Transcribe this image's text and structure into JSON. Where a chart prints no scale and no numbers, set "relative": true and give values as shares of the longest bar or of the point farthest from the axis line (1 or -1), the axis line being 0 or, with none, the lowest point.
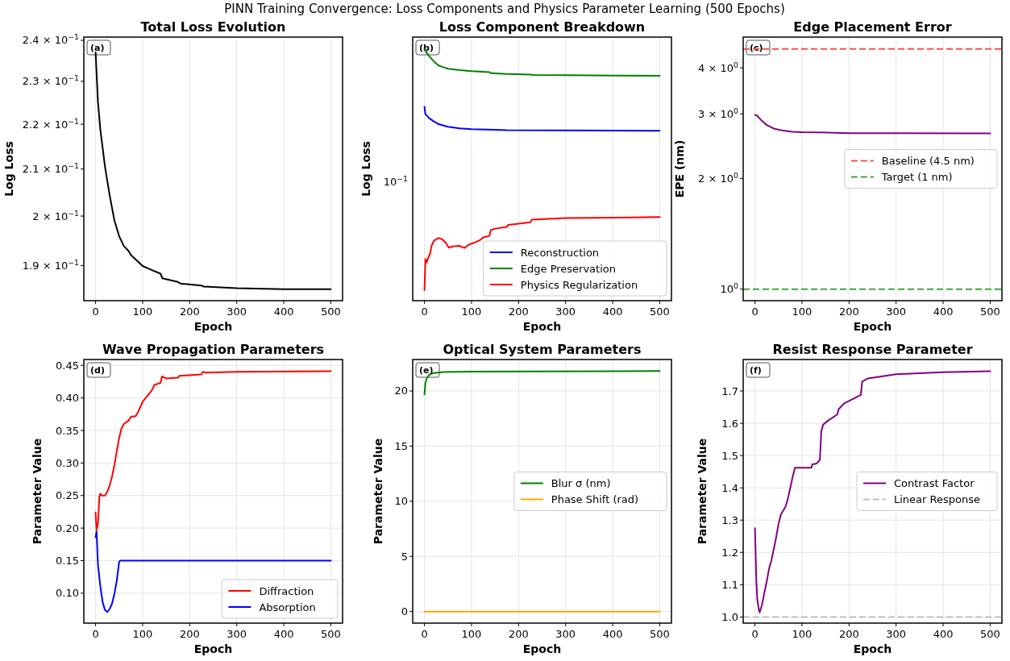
{
  "chart_data": [
    {
      "type": "line",
      "title": "Total Loss Evolution",
      "xlabel": "Epoch",
      "ylabel": "Log Loss",
      "log": "y",
      "grid": "x",
      "xlim": [
        -25,
        525
      ],
      "xticks": [
        0,
        100,
        200,
        300,
        400,
        500
      ],
      "ylim": [
        0.1832,
        0.2408
      ],
      "yticks": [
        {
          "value": 0.19,
          "label": "1.9 × 10$^{−1}$"
        },
        {
          "value": 0.2,
          "label": "2 × 10$^{−1}$"
        },
        {
          "value": 0.21,
          "label": "2.1 × 10$^{−1}$"
        },
        {
          "value": 0.22,
          "label": "2.2 × 10$^{−1}$"
        },
        {
          "value": 0.23,
          "label": "2.3 × 10$^{−1}$"
        },
        {
          "value": 0.24,
          "label": "2.4 × 10$^{−1}$"
        }
      ],
      "annotations": [
        "PINN Training Convergence: Loss Components and Physics Parameter Learning (500 Epochs)",
        "(a)"
      ],
      "series": [
        {
          "color": "#000000",
          "x": [
            0,
            5,
            10,
            20,
            30,
            40,
            50,
            60,
            70,
            75,
            100,
            120,
            138,
            142,
            175,
            180,
            225,
            230,
            300,
            400,
            500
          ],
          "values": [
            0.237,
            0.2251,
            0.2189,
            0.2105,
            0.2043,
            0.1991,
            0.1959,
            0.1939,
            0.1929,
            0.1921,
            0.1899,
            0.1891,
            0.1884,
            0.1875,
            0.1868,
            0.1865,
            0.1861,
            0.1859,
            0.1856,
            0.1854,
            0.1854
          ]
        }
      ]
    },
    {
      "type": "line",
      "title": "Loss Component Breakdown",
      "xlabel": "Epoch",
      "ylabel": "Log Loss",
      "relative": true,
      "grid": true,
      "legend": "bottom right",
      "xlim": [
        -25,
        525
      ],
      "xticks": [
        0,
        100,
        200,
        300,
        400,
        500
      ],
      "annotations": [
        "10$^{−1}$",
        "(b)"
      ],
      "series": [
        {
          "name": "Reconstruction",
          "color": "#0000ff",
          "x": [
            0,
            2,
            10,
            20,
            30,
            50,
            75,
            100,
            150,
            175,
            300,
            500
          ],
          "values": [
            0.772,
            0.743,
            0.727,
            0.714,
            0.703,
            0.693,
            0.686,
            0.683,
            0.681,
            0.679,
            0.678,
            0.677
          ]
        },
        {
          "name": "Edge Preservation",
          "color": "#008000",
          "x": [
            0,
            10,
            20,
            30,
            40,
            50,
            75,
            100,
            138,
            142,
            175,
            225,
            230,
            300,
            400,
            500
          ],
          "values": [
            1,
            0.974,
            0.953,
            0.937,
            0.93,
            0.924,
            0.918,
            0.914,
            0.91,
            0.906,
            0.903,
            0.901,
            0.899,
            0.898,
            0.897,
            0.896
          ]
        },
        {
          "name": "Physics Regularization",
          "color": "#ff0000",
          "x": [
            0,
            2,
            5,
            8,
            12,
            15,
            20,
            30,
            38,
            45,
            52,
            60,
            75,
            85,
            95,
            110,
            120,
            125,
            138,
            141,
            150,
            175,
            178,
            200,
            225,
            228,
            300,
            400,
            500
          ],
          "values": [
            0.042,
            0.166,
            0.153,
            0.171,
            0.187,
            0.218,
            0.239,
            0.25,
            0.244,
            0.231,
            0.211,
            0.216,
            0.218,
            0.21,
            0.224,
            0.234,
            0.244,
            0.252,
            0.258,
            0.281,
            0.287,
            0.294,
            0.302,
            0.307,
            0.312,
            0.323,
            0.329,
            0.331,
            0.333
          ]
        }
      ]
    },
    {
      "type": "line",
      "title": "Edge Placement Error",
      "xlabel": "Epoch",
      "ylabel": "EPE (nm)",
      "log": "y",
      "grid": "x",
      "legend": "right",
      "xlim": [
        -25,
        525
      ],
      "xticks": [
        0,
        100,
        200,
        300,
        400,
        500
      ],
      "ylim": [
        0.93,
        4.85
      ],
      "yticks": [
        {
          "value": 1,
          "label": "10$^{0}$"
        },
        {
          "value": 2,
          "label": "2 × 10$^{0}$"
        },
        {
          "value": 3,
          "label": "3 × 10$^{0}$"
        },
        {
          "value": 4,
          "label": "4 × 10$^{0}$"
        }
      ],
      "annotations": [
        "(c)"
      ],
      "ref_lines": [
        {
          "axis": "y",
          "value": 4.5,
          "label": "Baseline (4.5 nm)",
          "color": "#ff4d4d",
          "line_style": "dashed"
        },
        {
          "axis": "y",
          "value": 1,
          "label": "Target (1 nm)",
          "color": "#3ca83c",
          "line_style": "dashed"
        }
      ],
      "series": [
        {
          "color": "#800080",
          "x": [
            0,
            5,
            15,
            25,
            40,
            60,
            80,
            100,
            140,
            200,
            300,
            500
          ],
          "values": [
            2.98,
            2.96,
            2.867,
            2.795,
            2.735,
            2.698,
            2.68,
            2.673,
            2.669,
            2.657,
            2.657,
            2.653
          ]
        }
      ]
    },
    {
      "type": "line",
      "title": "Wave Propagation Parameters",
      "xlabel": "Epoch",
      "ylabel": "Parameter Value",
      "grid": true,
      "legend": "bottom right",
      "xlim": [
        -25,
        525
      ],
      "xticks": [
        0,
        100,
        200,
        300,
        400,
        500
      ],
      "ylim": [
        0.054,
        0.459
      ],
      "yticks": [
        {
          "value": 0.1,
          "label": "0.10"
        },
        0.15,
        {
          "value": 0.2,
          "label": "0.20"
        },
        0.25,
        {
          "value": 0.3,
          "label": "0.30"
        },
        0.35,
        {
          "value": 0.4,
          "label": "0.40"
        },
        0.45
      ],
      "annotations": [
        "(d)"
      ],
      "series": [
        {
          "name": "Diffraction",
          "color": "#ff0000",
          "x": [
            0,
            2,
            5,
            8,
            10,
            13,
            20,
            25,
            30,
            35,
            40,
            45,
            50,
            55,
            60,
            70,
            75,
            85,
            90,
            100,
            110,
            120,
            125,
            138,
            141,
            150,
            175,
            178,
            225,
            228,
            235,
            300,
            500
          ],
          "values": [
            0.224,
            0.197,
            0.206,
            0.248,
            0.253,
            0.25,
            0.25,
            0.256,
            0.266,
            0.279,
            0.297,
            0.318,
            0.338,
            0.353,
            0.36,
            0.365,
            0.371,
            0.372,
            0.378,
            0.394,
            0.403,
            0.412,
            0.42,
            0.423,
            0.433,
            0.43,
            0.431,
            0.434,
            0.436,
            0.44,
            0.439,
            0.44,
            0.441
          ]
        },
        {
          "name": "Absorption",
          "color": "#0000ff",
          "x": [
            0,
            2,
            5,
            10,
            15,
            20,
            25,
            30,
            35,
            40,
            45,
            50,
            52,
            500
          ],
          "values": [
            0.186,
            0.195,
            0.144,
            0.111,
            0.086,
            0.074,
            0.071,
            0.076,
            0.084,
            0.099,
            0.119,
            0.148,
            0.15,
            0.15
          ]
        }
      ]
    },
    {
      "type": "line",
      "title": "Optical System Parameters",
      "xlabel": "Epoch",
      "ylabel": "Parameter Value",
      "grid": true,
      "legend": "right",
      "xlim": [
        -25,
        525
      ],
      "xticks": [
        0,
        100,
        200,
        300,
        400,
        500
      ],
      "ylim": [
        -1.05,
        22.85
      ],
      "yticks": [
        0,
        5,
        10,
        15,
        20
      ],
      "annotations": [
        "(e)"
      ],
      "series": [
        {
          "name": "Blur σ (nm)",
          "color": "#008000",
          "x": [
            0,
            2,
            5,
            10,
            20,
            40,
            100,
            500
          ],
          "values": [
            19.68,
            20.73,
            21.15,
            21.46,
            21.63,
            21.71,
            21.76,
            21.8
          ]
        },
        {
          "name": "Phase Shift (rad)",
          "color": "#ffa500",
          "x": [
            0,
            500
          ],
          "values": [
            0,
            0
          ]
        }
      ]
    },
    {
      "type": "line",
      "title": "Resist Response Parameter",
      "xlabel": "Epoch",
      "ylabel": "Parameter Value",
      "grid": true,
      "legend": "right",
      "xlim": [
        -25,
        525
      ],
      "xticks": [
        0,
        100,
        200,
        300,
        400,
        500
      ],
      "ylim": [
        0.981,
        1.7975
      ],
      "yticks": [
        {
          "value": 1,
          "label": "1.0"
        },
        1.1,
        1.2,
        1.3,
        1.4,
        1.5,
        1.6,
        1.7
      ],
      "annotations": [
        "(f)"
      ],
      "ref_lines": [
        {
          "axis": "y",
          "value": 1,
          "label": "Linear Response",
          "color": "#c0c0c0",
          "line_style": "dashed"
        }
      ],
      "series": [
        {
          "name": "Contrast Factor",
          "color": "#800080",
          "x": [
            0,
            3,
            5,
            8,
            10,
            15,
            20,
            25,
            30,
            35,
            40,
            45,
            50,
            55,
            65,
            70,
            75,
            80,
            85,
            120,
            122,
            130,
            138,
            141,
            145,
            155,
            175,
            178,
            190,
            225,
            228,
            240,
            300,
            400,
            500
          ],
          "values": [
            1.275,
            1.11,
            1.054,
            1.025,
            1.014,
            1.038,
            1.075,
            1.11,
            1.15,
            1.175,
            1.21,
            1.246,
            1.288,
            1.317,
            1.342,
            1.367,
            1.4,
            1.433,
            1.462,
            1.462,
            1.473,
            1.475,
            1.486,
            1.575,
            1.596,
            1.608,
            1.627,
            1.644,
            1.662,
            1.688,
            1.729,
            1.739,
            1.752,
            1.758,
            1.761
          ]
        }
      ]
    }
  ]
}
